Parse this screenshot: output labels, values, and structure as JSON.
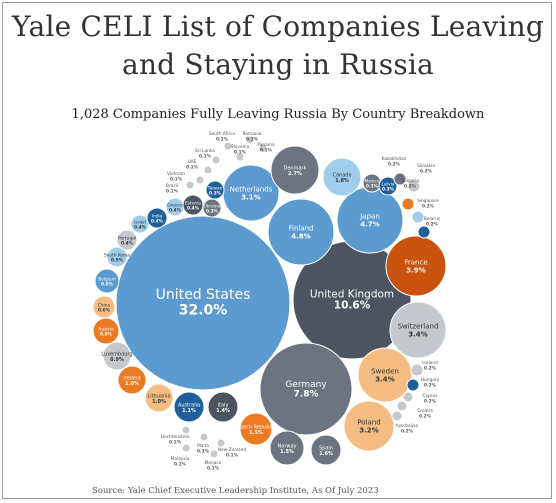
{
  "title_line1": "Yale CELI List of Companies Leaving",
  "title_line2": "and Staying in Russia",
  "chart_data": {
    "type": "bubble",
    "title": "1,028 Companies Fully Leaving Russia By Country Breakdown",
    "unit": "%",
    "series": [
      {
        "label": "United States",
        "value": 32.0,
        "color": "#5b9bd0"
      },
      {
        "label": "United Kingdom",
        "value": 10.6,
        "color": "#4b5460"
      },
      {
        "label": "Germany",
        "value": 7.8,
        "color": "#6b7480"
      },
      {
        "label": "Finland",
        "value": 4.8,
        "color": "#5b9bd0"
      },
      {
        "label": "Japan",
        "value": 4.7,
        "color": "#5b9bd0"
      },
      {
        "label": "France",
        "value": 3.9,
        "color": "#c8520e"
      },
      {
        "label": "Switzerland",
        "value": 3.4,
        "color": "#c5c8cc"
      },
      {
        "label": "Sweden",
        "value": 3.4,
        "color": "#f6bd82"
      },
      {
        "label": "Poland",
        "value": 3.2,
        "color": "#f6bd82"
      },
      {
        "label": "Netherlands",
        "value": 3.1,
        "color": "#5b9bd0"
      },
      {
        "label": "Denmark",
        "value": 2.7,
        "color": "#6b7480"
      },
      {
        "label": "Canada",
        "value": 1.8,
        "color": "#9fcdeb"
      },
      {
        "label": "Norway",
        "value": 1.5,
        "color": "#6b7480"
      },
      {
        "label": "Spain",
        "value": 1.6,
        "color": "#6b7480"
      },
      {
        "label": "Czech Republic",
        "value": 1.5,
        "color": "#ec7a22"
      },
      {
        "label": "Italy",
        "value": 1.4,
        "color": "#4b5460"
      },
      {
        "label": "Australia",
        "value": 1.1,
        "color": "#1f5f9c"
      },
      {
        "label": "Ireland",
        "value": 1.0,
        "color": "#ec7a22"
      },
      {
        "label": "Lithuania",
        "value": 1.0,
        "color": "#f6bd82"
      },
      {
        "label": "Luxembourg",
        "value": 0.9,
        "color": "#c5c8cc"
      },
      {
        "label": "Austria",
        "value": 0.8,
        "color": "#ec7a22"
      },
      {
        "label": "Belgium",
        "value": 0.6,
        "color": "#5b9bd0"
      },
      {
        "label": "China",
        "value": 0.6,
        "color": "#f6bd82"
      },
      {
        "label": "South Korea",
        "value": 0.5,
        "color": "#9fcdeb"
      },
      {
        "label": "Portugal",
        "value": 0.4,
        "color": "#c5c8cc"
      },
      {
        "label": "Israel",
        "value": 0.4,
        "color": "#9fcdeb"
      },
      {
        "label": "India",
        "value": 0.4,
        "color": "#1f5f9c"
      },
      {
        "label": "Greece",
        "value": 0.4,
        "color": "#9fcdeb"
      },
      {
        "label": "Estonia",
        "value": 0.4,
        "color": "#4b5460"
      },
      {
        "label": "Ukraine",
        "value": 0.3,
        "color": "#6b7480"
      },
      {
        "label": "Taiwan",
        "value": 0.3,
        "color": "#1f5f9c"
      },
      {
        "label": "Mexico",
        "value": 0.3,
        "color": "#6b7480"
      },
      {
        "label": "Latvia",
        "value": 0.3,
        "color": "#1f5f9c"
      },
      {
        "label": "Iceland",
        "value": 0.2,
        "color": "#c5c8cc"
      },
      {
        "label": "Hungary",
        "value": 0.2,
        "color": "#1f5f9c"
      },
      {
        "label": "Cyprus",
        "value": 0.2,
        "color": "#c5c8cc"
      },
      {
        "label": "Croatia",
        "value": 0.2,
        "color": "#c5c8cc"
      },
      {
        "label": "Azerbaijan",
        "value": 0.2,
        "color": "#c5c8cc"
      },
      {
        "label": "Kazakhstan",
        "value": 0.2,
        "color": "#6b7480"
      },
      {
        "label": "Slovakia",
        "value": 0.2,
        "color": "#c5c8cc"
      },
      {
        "label": "Bulgaria",
        "value": 0.2,
        "color": "#ec7a22"
      },
      {
        "label": "Singapore",
        "value": 0.2,
        "color": "#9fcdeb"
      },
      {
        "label": "Belarus",
        "value": 0.2,
        "color": "#1f5f9c"
      },
      {
        "label": "Brazil",
        "value": 0.1,
        "color": "#c5c8cc"
      },
      {
        "label": "Vietnam",
        "value": 0.1,
        "color": "#c5c8cc"
      },
      {
        "label": "UAE",
        "value": 0.1,
        "color": "#c5c8cc"
      },
      {
        "label": "Sri Lanka",
        "value": 0.1,
        "color": "#c5c8cc"
      },
      {
        "label": "South Africa",
        "value": 0.1,
        "color": "#c5c8cc"
      },
      {
        "label": "Slovenia",
        "value": 0.1,
        "color": "#c5c8cc"
      },
      {
        "label": "Romania",
        "value": 0.1,
        "color": "#c5c8cc"
      },
      {
        "label": "Panama",
        "value": 0.1,
        "color": "#c5c8cc"
      },
      {
        "label": "Liechtenstein",
        "value": 0.1,
        "color": "#c5c8cc"
      },
      {
        "label": "Malta",
        "value": 0.1,
        "color": "#c5c8cc"
      },
      {
        "label": "Malaysia",
        "value": 0.1,
        "color": "#c5c8cc"
      },
      {
        "label": "New Zealand",
        "value": 0.1,
        "color": "#c5c8cc"
      },
      {
        "label": "Monaco",
        "value": 0.1,
        "color": "#c5c8cc"
      }
    ]
  },
  "source": "Source: Yale Chief Executive Leadership Institute, As Of July 2023"
}
